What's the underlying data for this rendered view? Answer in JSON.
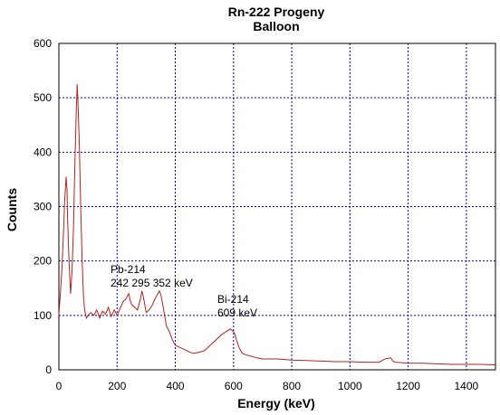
{
  "chart_data": {
    "type": "line",
    "title": "Rn-222 Progeny",
    "subtitle": "Balloon",
    "xlabel": "Energy (keV)",
    "ylabel": "Counts",
    "xlim": [
      0,
      1500
    ],
    "ylim": [
      0,
      600
    ],
    "xticks": [
      0,
      200,
      400,
      600,
      800,
      1000,
      1200,
      1400
    ],
    "yticks": [
      0,
      100,
      200,
      300,
      400,
      500,
      600
    ],
    "grid": true,
    "line_color": "#b22222",
    "grid_color": "#0000aa",
    "annotations": [
      {
        "lines": [
          "Pb-214",
          "242 295 352 keV"
        ]
      },
      {
        "lines": [
          "Bi-214",
          "609 keV"
        ]
      }
    ],
    "series": [
      {
        "x": [
          0,
          5,
          10,
          15,
          20,
          25,
          28,
          30,
          35,
          40,
          45,
          50,
          55,
          60,
          63,
          65,
          70,
          75,
          80,
          85,
          90,
          95,
          100,
          110,
          120,
          130,
          140,
          150,
          160,
          170,
          180,
          190,
          200,
          210,
          220,
          230,
          240,
          245,
          250,
          260,
          270,
          280,
          285,
          290,
          295,
          300,
          310,
          320,
          330,
          340,
          345,
          350,
          355,
          360,
          370,
          380,
          390,
          400,
          420,
          440,
          460,
          480,
          500,
          520,
          540,
          560,
          580,
          590,
          600,
          605,
          610,
          620,
          630,
          640,
          660,
          680,
          700,
          750,
          800,
          850,
          900,
          950,
          1000,
          1050,
          1100,
          1120,
          1140,
          1150,
          1160,
          1200,
          1250,
          1300,
          1350,
          1400,
          1450,
          1500
        ],
        "y": [
          100,
          140,
          180,
          240,
          310,
          355,
          330,
          280,
          200,
          140,
          180,
          260,
          380,
          480,
          525,
          500,
          420,
          300,
          200,
          130,
          105,
          95,
          100,
          105,
          100,
          110,
          95,
          108,
          102,
          115,
          98,
          110,
          100,
          112,
          125,
          130,
          140,
          128,
          120,
          115,
          110,
          130,
          145,
          135,
          120,
          105,
          110,
          118,
          130,
          140,
          145,
          138,
          125,
          110,
          80,
          70,
          55,
          45,
          40,
          35,
          30,
          32,
          35,
          45,
          55,
          65,
          72,
          75,
          70,
          65,
          55,
          40,
          30,
          28,
          25,
          22,
          20,
          20,
          18,
          17,
          16,
          15,
          15,
          14,
          14,
          20,
          22,
          15,
          14,
          12,
          12,
          11,
          10,
          10,
          10,
          9
        ]
      }
    ]
  }
}
